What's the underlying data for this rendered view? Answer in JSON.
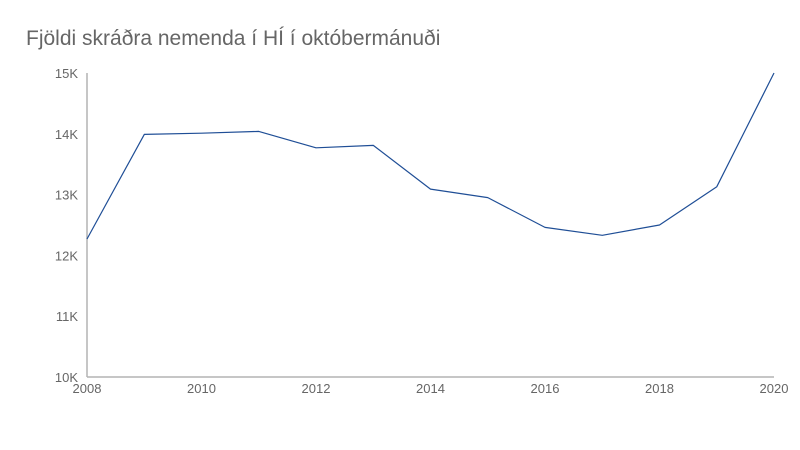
{
  "chart_data": {
    "type": "line",
    "title": "Fjöldi skráðra nemenda í HÍ í októbermánuði",
    "xlabel": "",
    "ylabel": "",
    "x": [
      2008,
      2009,
      2010,
      2011,
      2012,
      2013,
      2014,
      2015,
      2016,
      2017,
      2018,
      2019,
      2020
    ],
    "series": [
      {
        "values": [
          12270,
          13990,
          14010,
          14040,
          13770,
          13810,
          13090,
          12950,
          12460,
          12330,
          12500,
          13130,
          15000
        ],
        "color": "#1f4e96"
      }
    ],
    "xlim": [
      2008,
      2020
    ],
    "ylim": [
      10000,
      15000
    ],
    "x_ticks": [
      2008,
      2010,
      2012,
      2014,
      2016,
      2018,
      2020
    ],
    "x_tick_labels": [
      "2008",
      "2010",
      "2012",
      "2014",
      "2016",
      "2018",
      "2020"
    ],
    "y_ticks": [
      10000,
      11000,
      12000,
      13000,
      14000,
      15000
    ],
    "y_tick_labels": [
      "10K",
      "11K",
      "12K",
      "13K",
      "14K",
      "15K"
    ],
    "grid": false,
    "legend": "none",
    "axis_color": "#b3b3b3",
    "text_color": "#666666"
  }
}
